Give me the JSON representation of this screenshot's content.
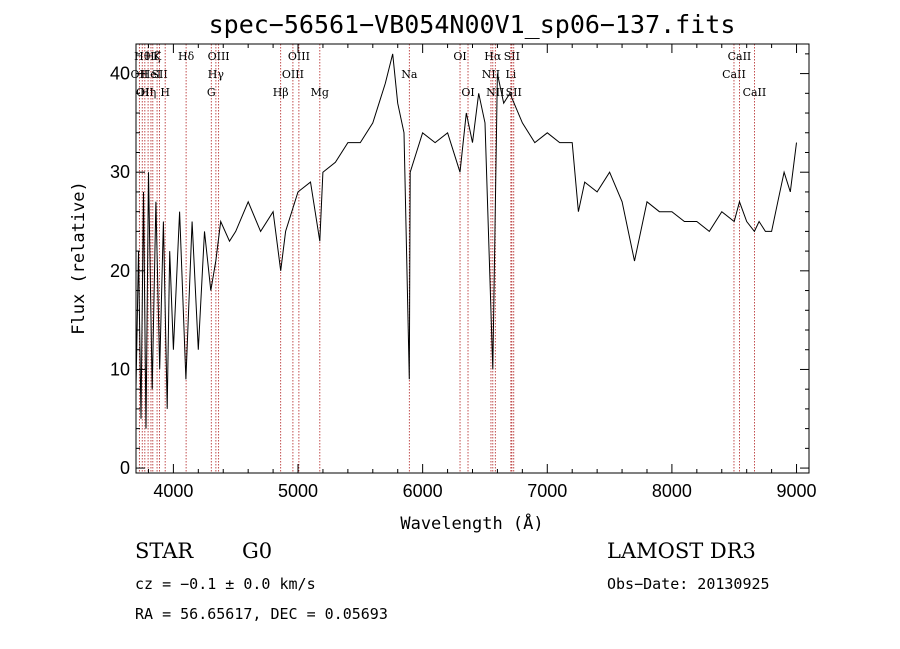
{
  "chart_data": {
    "type": "line",
    "title": "spec−56561−VB054N00V1_sp06−137.fits",
    "xlabel": "Wavelength (Å)",
    "ylabel": "Flux (relative)",
    "xlim": [
      3700,
      9100
    ],
    "ylim": [
      -0.5,
      43
    ],
    "xticks": [
      4000,
      5000,
      6000,
      7000,
      8000,
      9000
    ],
    "yticks": [
      0,
      10,
      20,
      30,
      40
    ],
    "xtick_labels": [
      "4000",
      "5000",
      "6000",
      "7000",
      "8000",
      "9000"
    ],
    "ytick_labels": [
      "0",
      "10",
      "20",
      "30",
      "40"
    ],
    "series": [
      {
        "name": "flux",
        "x": [
          3700,
          3720,
          3740,
          3760,
          3780,
          3800,
          3830,
          3860,
          3890,
          3920,
          3950,
          3970,
          4000,
          4050,
          4100,
          4150,
          4200,
          4250,
          4300,
          4340,
          4380,
          4450,
          4500,
          4600,
          4700,
          4800,
          4861,
          4900,
          5000,
          5100,
          5175,
          5200,
          5300,
          5400,
          5500,
          5600,
          5700,
          5760,
          5800,
          5850,
          5893,
          5900,
          5950,
          6000,
          6100,
          6200,
          6300,
          6350,
          6400,
          6450,
          6500,
          6563,
          6600,
          6650,
          6700,
          6800,
          6900,
          7000,
          7100,
          7200,
          7250,
          7300,
          7400,
          7500,
          7600,
          7700,
          7800,
          7900,
          8000,
          8100,
          8200,
          8300,
          8400,
          8500,
          8542,
          8600,
          8662,
          8700,
          8750,
          8800,
          8850,
          8900,
          8950,
          9000
        ],
        "y": [
          8,
          22,
          5,
          28,
          4,
          30,
          8,
          27,
          10,
          25,
          6,
          22,
          12,
          26,
          9,
          25,
          12,
          24,
          18,
          21,
          25,
          23,
          24,
          27,
          24,
          26,
          20,
          24,
          28,
          29,
          23,
          30,
          31,
          33,
          33,
          35,
          39,
          42,
          37,
          34,
          9,
          30,
          32,
          34,
          33,
          34,
          30,
          36,
          33,
          38,
          35,
          10,
          40,
          37,
          38,
          35,
          33,
          34,
          33,
          33,
          26,
          29,
          28,
          30,
          27,
          21,
          27,
          26,
          26,
          25,
          25,
          24,
          26,
          25,
          27,
          25,
          24,
          25,
          24,
          24,
          27,
          30,
          28,
          33
        ]
      }
    ],
    "line_markers": [
      {
        "wl": 3727,
        "label": "OII",
        "row": 1
      },
      {
        "wl": 3750,
        "label": "Hθ",
        "row": 0
      },
      {
        "wl": 3771,
        "label": "OII",
        "row": 2
      },
      {
        "wl": 3797,
        "label": "Hη",
        "row": 2
      },
      {
        "wl": 3820,
        "label": "HeI",
        "row": 1
      },
      {
        "wl": 3835,
        "label": "Hζ",
        "row": 0
      },
      {
        "wl": 3869,
        "label": "K",
        "row": 0
      },
      {
        "wl": 3889,
        "label": "SII",
        "row": 1
      },
      {
        "wl": 3934,
        "label": "H",
        "row": 2
      },
      {
        "wl": 4102,
        "label": "Hδ",
        "row": 0
      },
      {
        "wl": 4304,
        "label": "G",
        "row": 2
      },
      {
        "wl": 4341,
        "label": "Hγ",
        "row": 1
      },
      {
        "wl": 4363,
        "label": "OIII",
        "row": 0
      },
      {
        "wl": 4861,
        "label": "Hβ",
        "row": 2
      },
      {
        "wl": 4959,
        "label": "OIII",
        "row": 1
      },
      {
        "wl": 5007,
        "label": "OIII",
        "row": 0
      },
      {
        "wl": 5175,
        "label": "Mg",
        "row": 2
      },
      {
        "wl": 5893,
        "label": "Na",
        "row": 1
      },
      {
        "wl": 6300,
        "label": "OI",
        "row": 0
      },
      {
        "wl": 6364,
        "label": "OI",
        "row": 2
      },
      {
        "wl": 6548,
        "label": "NII",
        "row": 1
      },
      {
        "wl": 6563,
        "label": "Hα",
        "row": 0
      },
      {
        "wl": 6583,
        "label": "NII",
        "row": 2
      },
      {
        "wl": 6708,
        "label": "Li",
        "row": 1
      },
      {
        "wl": 6716,
        "label": "SII",
        "row": 0
      },
      {
        "wl": 6731,
        "label": "SII",
        "row": 2
      },
      {
        "wl": 8498,
        "label": "CaII",
        "row": 1
      },
      {
        "wl": 8542,
        "label": "CaII",
        "row": 0
      },
      {
        "wl": 8662,
        "label": "CaII",
        "row": 2
      }
    ]
  },
  "info": {
    "object_class": "STAR",
    "subclass": "G0",
    "survey": "LAMOST DR3",
    "cz": "cz = −0.1 ± 0.0 km/s",
    "obs_date": "Obs−Date: 20130925",
    "radec": "RA =  56.65617, DEC =    0.05693"
  }
}
